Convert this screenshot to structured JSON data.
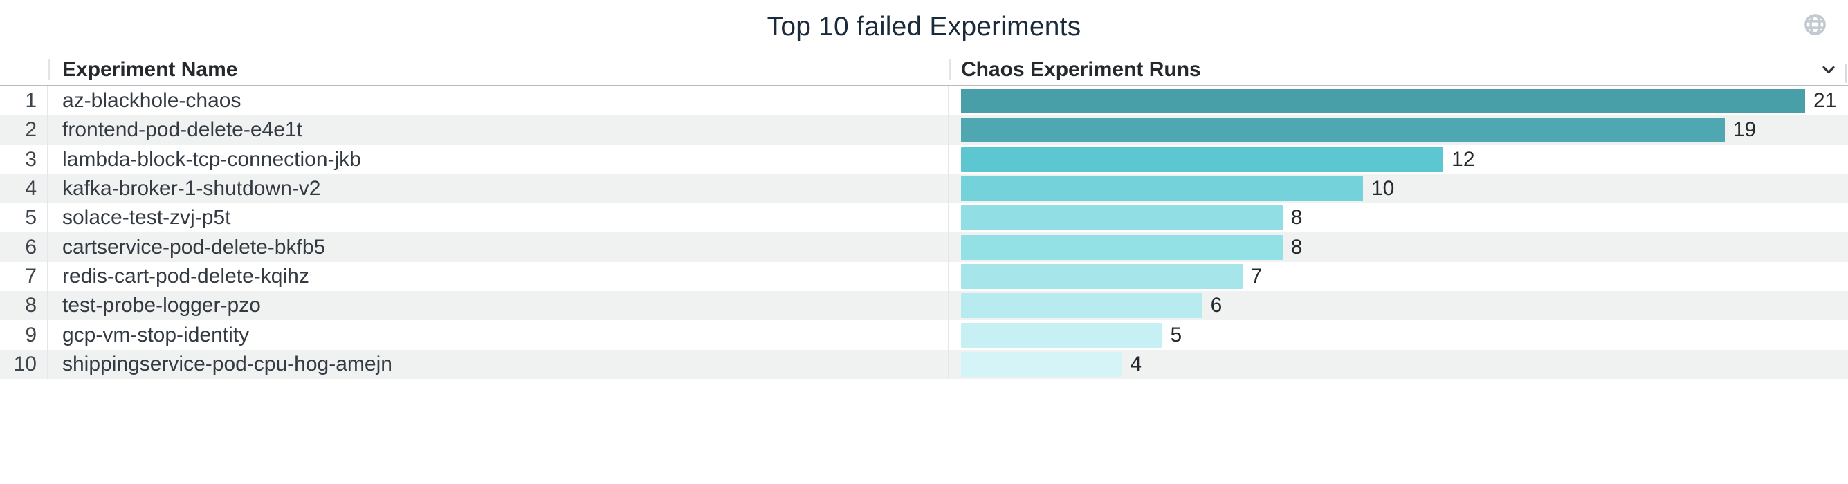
{
  "panel": {
    "title": "Top 10 failed Experiments",
    "icons": {
      "top_right": "globe-icon",
      "header_right": "chevron-down-icon"
    },
    "colors": {
      "title_text": "#1b2b3b",
      "header_text": "#24292e",
      "row_text": "#333a41",
      "rank_text": "#3d444c",
      "stripe": "#f0f1f1",
      "header_border": "#b6bcc2",
      "column_divider": "#e4e6e8",
      "globe_icon": "#c3c9d0",
      "chevron_icon": "#2e343b"
    }
  },
  "table": {
    "columns": [
      {
        "label": ""
      },
      {
        "label": "Experiment Name"
      },
      {
        "label": "Chaos Experiment Runs"
      }
    ],
    "rows": [
      {
        "rank": "1",
        "name": "az-blackhole-chaos",
        "runs": 21,
        "bar_color": "#489fa8"
      },
      {
        "rank": "2",
        "name": "frontend-pod-delete-e4e1t",
        "runs": 19,
        "bar_color": "#4fa8b1"
      },
      {
        "rank": "3",
        "name": "lambda-block-tcp-connection-jkb",
        "runs": 12,
        "bar_color": "#5cc6d1"
      },
      {
        "rank": "4",
        "name": "kafka-broker-1-shutdown-v2",
        "runs": 10,
        "bar_color": "#73d2da"
      },
      {
        "rank": "5",
        "name": "solace-test-zvj-p5t",
        "runs": 8,
        "bar_color": "#91dfe5"
      },
      {
        "rank": "6",
        "name": "cartservice-pod-delete-bkfb5",
        "runs": 8,
        "bar_color": "#93e0e5"
      },
      {
        "rank": "7",
        "name": "redis-cart-pod-delete-kqihz",
        "runs": 7,
        "bar_color": "#a6e6eb"
      },
      {
        "rank": "8",
        "name": "test-probe-logger-pzo",
        "runs": 6,
        "bar_color": "#b7ebef"
      },
      {
        "rank": "9",
        "name": "gcp-vm-stop-identity",
        "runs": 5,
        "bar_color": "#c7f0f4"
      },
      {
        "rank": "10",
        "name": "shippingservice-pod-cpu-hog-amejn",
        "runs": 4,
        "bar_color": "#d5f4f8"
      }
    ]
  },
  "chart_data": {
    "type": "bar",
    "orientation": "horizontal",
    "title": "Top 10 failed Experiments",
    "series_label": "Chaos Experiment Runs",
    "categories": [
      "az-blackhole-chaos",
      "frontend-pod-delete-e4e1t",
      "lambda-block-tcp-connection-jkb",
      "kafka-broker-1-shutdown-v2",
      "solace-test-zvj-p5t",
      "cartservice-pod-delete-bkfb5",
      "redis-cart-pod-delete-kqihz",
      "test-probe-logger-pzo",
      "gcp-vm-stop-identity",
      "shippingservice-pod-cpu-hog-amejn"
    ],
    "values": [
      21,
      19,
      12,
      10,
      8,
      8,
      7,
      6,
      5,
      4
    ],
    "value_labels_shown": true,
    "xlim": [
      0,
      21
    ],
    "grid": false,
    "legend": "none",
    "bar_colors": [
      "#489fa8",
      "#4fa8b1",
      "#5cc6d1",
      "#73d2da",
      "#91dfe5",
      "#93e0e5",
      "#a6e6eb",
      "#b7ebef",
      "#c7f0f4",
      "#d5f4f8"
    ]
  }
}
